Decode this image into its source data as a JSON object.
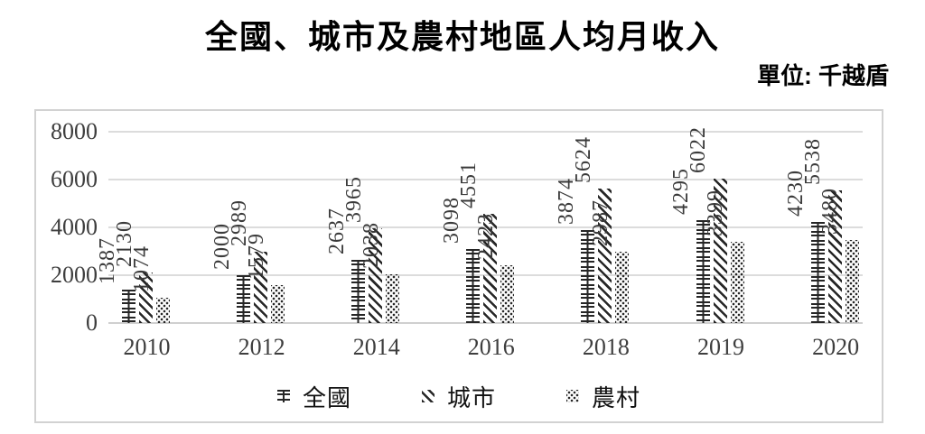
{
  "page": {
    "title": "全國、城市及農村地區人均月收入",
    "unit_label": "單位: 千越盾"
  },
  "chart_data": {
    "type": "bar",
    "title": "全國、城市及農村地區人均月收入",
    "subtitle": "單位: 千越盾",
    "categories": [
      "2010",
      "2012",
      "2014",
      "2016",
      "2018",
      "2019",
      "2020"
    ],
    "series": [
      {
        "name": "全國",
        "pattern": "h-chain",
        "values": [
          1387,
          2000,
          2637,
          3098,
          3874,
          4295,
          4230
        ]
      },
      {
        "name": "城市",
        "pattern": "diagonal-stripes",
        "values": [
          2130,
          2989,
          3965,
          4551,
          5624,
          6022,
          5538
        ]
      },
      {
        "name": "農村",
        "pattern": "dots",
        "values": [
          1074,
          1579,
          2038,
          2423,
          2987,
          3399,
          3480
        ]
      }
    ],
    "ylim": [
      0,
      8000
    ],
    "yticks": [
      0,
      2000,
      4000,
      6000,
      8000
    ],
    "xlabel": "",
    "ylabel": "",
    "grid": true,
    "legend_position": "bottom",
    "bar_color": "#262626",
    "grid_color": "#dcdcdc",
    "data_labels": "rotated-90-above-bars"
  }
}
